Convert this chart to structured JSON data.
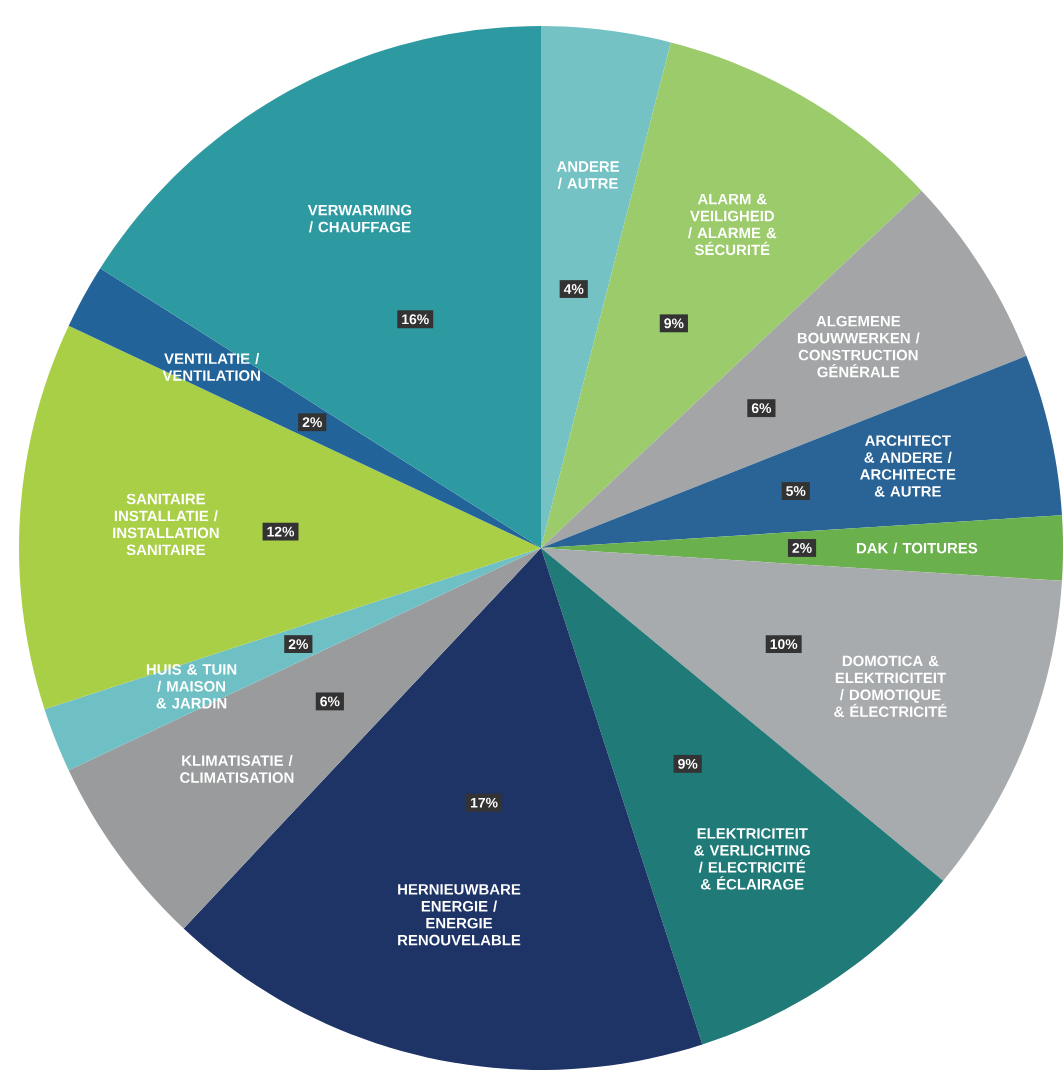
{
  "chart_data": {
    "type": "pie",
    "categories": [
      "ANDERE / AUTRE",
      "ALARM & VEILIGHEID / ALARME & SÉCURITÉ",
      "ALGEMENE BOUWWERKEN / CONSTRUCTION GÉNÉRALE",
      "ARCHITECT & ANDERE / ARCHITECTE & AUTRE",
      "DAK / TOITURES",
      "DOMOTICA & ELEKTRICITEIT / DOMOTIQUE & ÉLECTRICITÉ",
      "ELEKTRICITEIT & VERLICHTING / ELECTRICITÉ & ÉCLAIRAGE",
      "HERNIEUWBARE ENERGIE / ENERGIE RENOUVELABLE",
      "KLIMATISATIE / CLIMATISATION",
      "HUIS & TUIN / MAISON & JARDIN",
      "SANITAIRE INSTALLATIE / INSTALLATION SANITAIRE",
      "VENTILATIE / VENTILATION",
      "VERWARMING / CHAUFFAGE"
    ],
    "values": [
      4,
      9,
      6,
      5,
      2,
      10,
      9,
      17,
      6,
      2,
      12,
      2,
      16
    ],
    "value_labels": [
      "4%",
      "9%",
      "6%",
      "5%",
      "2%",
      "10%",
      "9%",
      "17%",
      "6%",
      "2%",
      "12%",
      "2%",
      "16%"
    ],
    "colors": [
      "#74c2c3",
      "#9ccb6b",
      "#a3a5a6",
      "#2a6496",
      "#6ab04c",
      "#a8abad",
      "#1f7a78",
      "#1f3466",
      "#999b9c",
      "#6fc0c4",
      "#a9cf46",
      "#22649a",
      "#2d9aa2"
    ]
  }
}
